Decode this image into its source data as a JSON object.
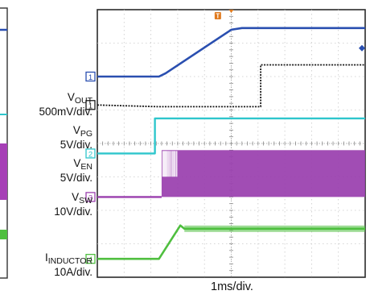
{
  "chart_data": {
    "type": "line",
    "title": "",
    "xlabel": "1ms/div.",
    "x_divisions": 10,
    "y_divisions": 8,
    "xlim": [
      0,
      10
    ],
    "ylim": [
      0,
      8
    ],
    "grid": true,
    "x_units": "div (1 ms/div)",
    "y_units": "div",
    "channels": [
      {
        "id": "1",
        "name": "VOUT",
        "name_main": "V",
        "name_sub": "OUT",
        "scale": "500mV/div.",
        "color": "#2a4fb0",
        "x": [
          0,
          2.3,
          2.55,
          5.0,
          5.4,
          10
        ],
        "y": [
          6.0,
          6.0,
          6.1,
          7.4,
          7.45,
          7.45
        ]
      },
      {
        "id": "1",
        "name": "VPG",
        "name_main": "V",
        "name_sub": "PG",
        "scale": "5V/div.",
        "color": "#1a1a1a",
        "x": [
          0,
          2.3,
          6.1,
          6.1,
          10
        ],
        "y": [
          5.15,
          5.1,
          5.1,
          6.35,
          6.35
        ]
      },
      {
        "id": "2",
        "name": "VEN",
        "name_main": "V",
        "name_sub": "EN",
        "scale": "5V/div.",
        "color": "#2ec6cc",
        "x": [
          0,
          2.15,
          2.15,
          10
        ],
        "y": [
          3.7,
          3.7,
          4.75,
          4.75
        ]
      },
      {
        "id": "3",
        "name": "VSW",
        "name_main": "V",
        "name_sub": "SW",
        "scale": "10V/div.",
        "color": "#9a3fae",
        "x": [
          0,
          2.4,
          2.4,
          10
        ],
        "y": [
          2.4,
          2.4,
          3.8,
          3.8
        ],
        "switching_region": [
          2.4,
          10
        ],
        "switching_low": 2.4,
        "switching_high": 3.8
      },
      {
        "id": "4",
        "name": "IINDUCTOR",
        "name_main": "I",
        "name_sub": "INDUCTOR",
        "scale": "10A/div.",
        "color": "#4fbf3f",
        "x": [
          0,
          2.3,
          3.1,
          3.25,
          10
        ],
        "y": [
          0.55,
          0.55,
          1.55,
          1.45,
          1.45
        ]
      }
    ],
    "markers": [
      {
        "symbol": "T",
        "color": "#e07a1e"
      }
    ]
  }
}
